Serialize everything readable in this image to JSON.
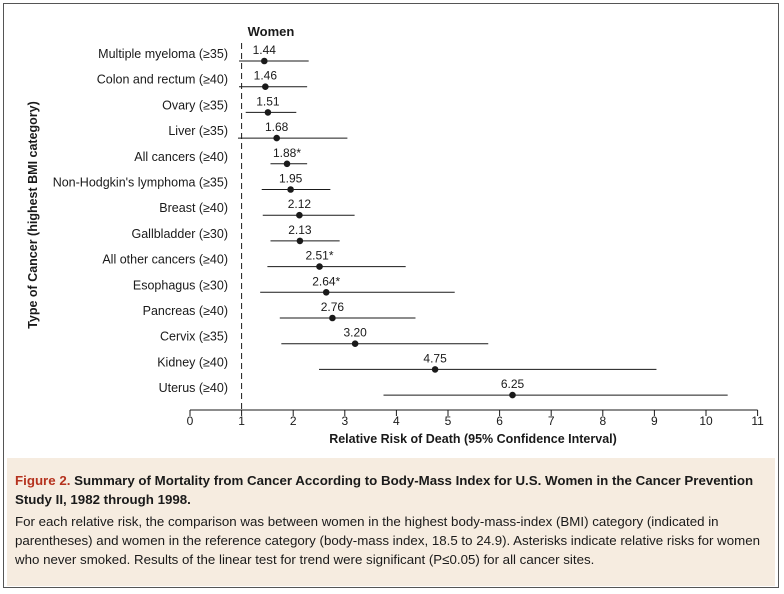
{
  "chart_data": {
    "type": "forest",
    "title": "Women",
    "xlabel": "Relative Risk of Death (95% Confidence Interval)",
    "ylabel": "Type of Cancer (highest BMI category)",
    "xlim": [
      0,
      11
    ],
    "xticks": [
      0,
      1,
      2,
      3,
      4,
      5,
      6,
      7,
      8,
      9,
      10,
      11
    ],
    "reference_line": 1,
    "rows": [
      {
        "label": "Multiple myeloma (≥35)",
        "value": 1.44,
        "value_label": "1.44",
        "ci": [
          0.95,
          2.3
        ]
      },
      {
        "label": "Colon and rectum (≥40)",
        "value": 1.46,
        "value_label": "1.46",
        "ci": [
          0.95,
          2.27
        ]
      },
      {
        "label": "Ovary (≥35)",
        "value": 1.51,
        "value_label": "1.51",
        "ci": [
          1.08,
          2.06
        ]
      },
      {
        "label": "Liver (≥35)",
        "value": 1.68,
        "value_label": "1.68",
        "ci": [
          0.93,
          3.05
        ]
      },
      {
        "label": "All cancers (≥40)",
        "value": 1.88,
        "value_label": "1.88*",
        "ci": [
          1.56,
          2.27
        ]
      },
      {
        "label": "Non-Hodgkin's lymphoma (≥35)",
        "value": 1.95,
        "value_label": "1.95",
        "ci": [
          1.39,
          2.72
        ]
      },
      {
        "label": "Breast (≥40)",
        "value": 2.12,
        "value_label": "2.12",
        "ci": [
          1.41,
          3.19
        ]
      },
      {
        "label": "Gallbladder (≥30)",
        "value": 2.13,
        "value_label": "2.13",
        "ci": [
          1.56,
          2.9
        ]
      },
      {
        "label": "All other cancers (≥40)",
        "value": 2.51,
        "value_label": "2.51*",
        "ci": [
          1.5,
          4.18
        ]
      },
      {
        "label": "Esophagus (≥30)",
        "value": 2.64,
        "value_label": "2.64*",
        "ci": [
          1.36,
          5.13
        ]
      },
      {
        "label": "Pancreas (≥40)",
        "value": 2.76,
        "value_label": "2.76",
        "ci": [
          1.74,
          4.37
        ]
      },
      {
        "label": "Cervix (≥35)",
        "value": 3.2,
        "value_label": "3.20",
        "ci": [
          1.77,
          5.78
        ]
      },
      {
        "label": "Kidney (≥40)",
        "value": 4.75,
        "value_label": "4.75",
        "ci": [
          2.5,
          9.04
        ]
      },
      {
        "label": "Uterus (≥40)",
        "value": 6.25,
        "value_label": "6.25",
        "ci": [
          3.75,
          10.42
        ]
      }
    ]
  },
  "caption": {
    "label": "Figure 2.",
    "title": "Summary of Mortality from Cancer According to Body-Mass Index for U.S. Women in the Cancer Prevention Study II, 1982 through 1998.",
    "body": "For each relative risk, the comparison was between women in the highest body-mass-index (BMI) category (indicated in parentheses) and women in the reference category (body-mass index, 18.5 to 24.9). Asterisks indicate relative risks for women who never smoked. Results of the linear test for trend were significant (P≤0.05) for all cancer sites."
  },
  "colors": {
    "caption_bg": "#f6ece0",
    "caption_label": "#b5321e",
    "ink": "#1a1a1a"
  }
}
